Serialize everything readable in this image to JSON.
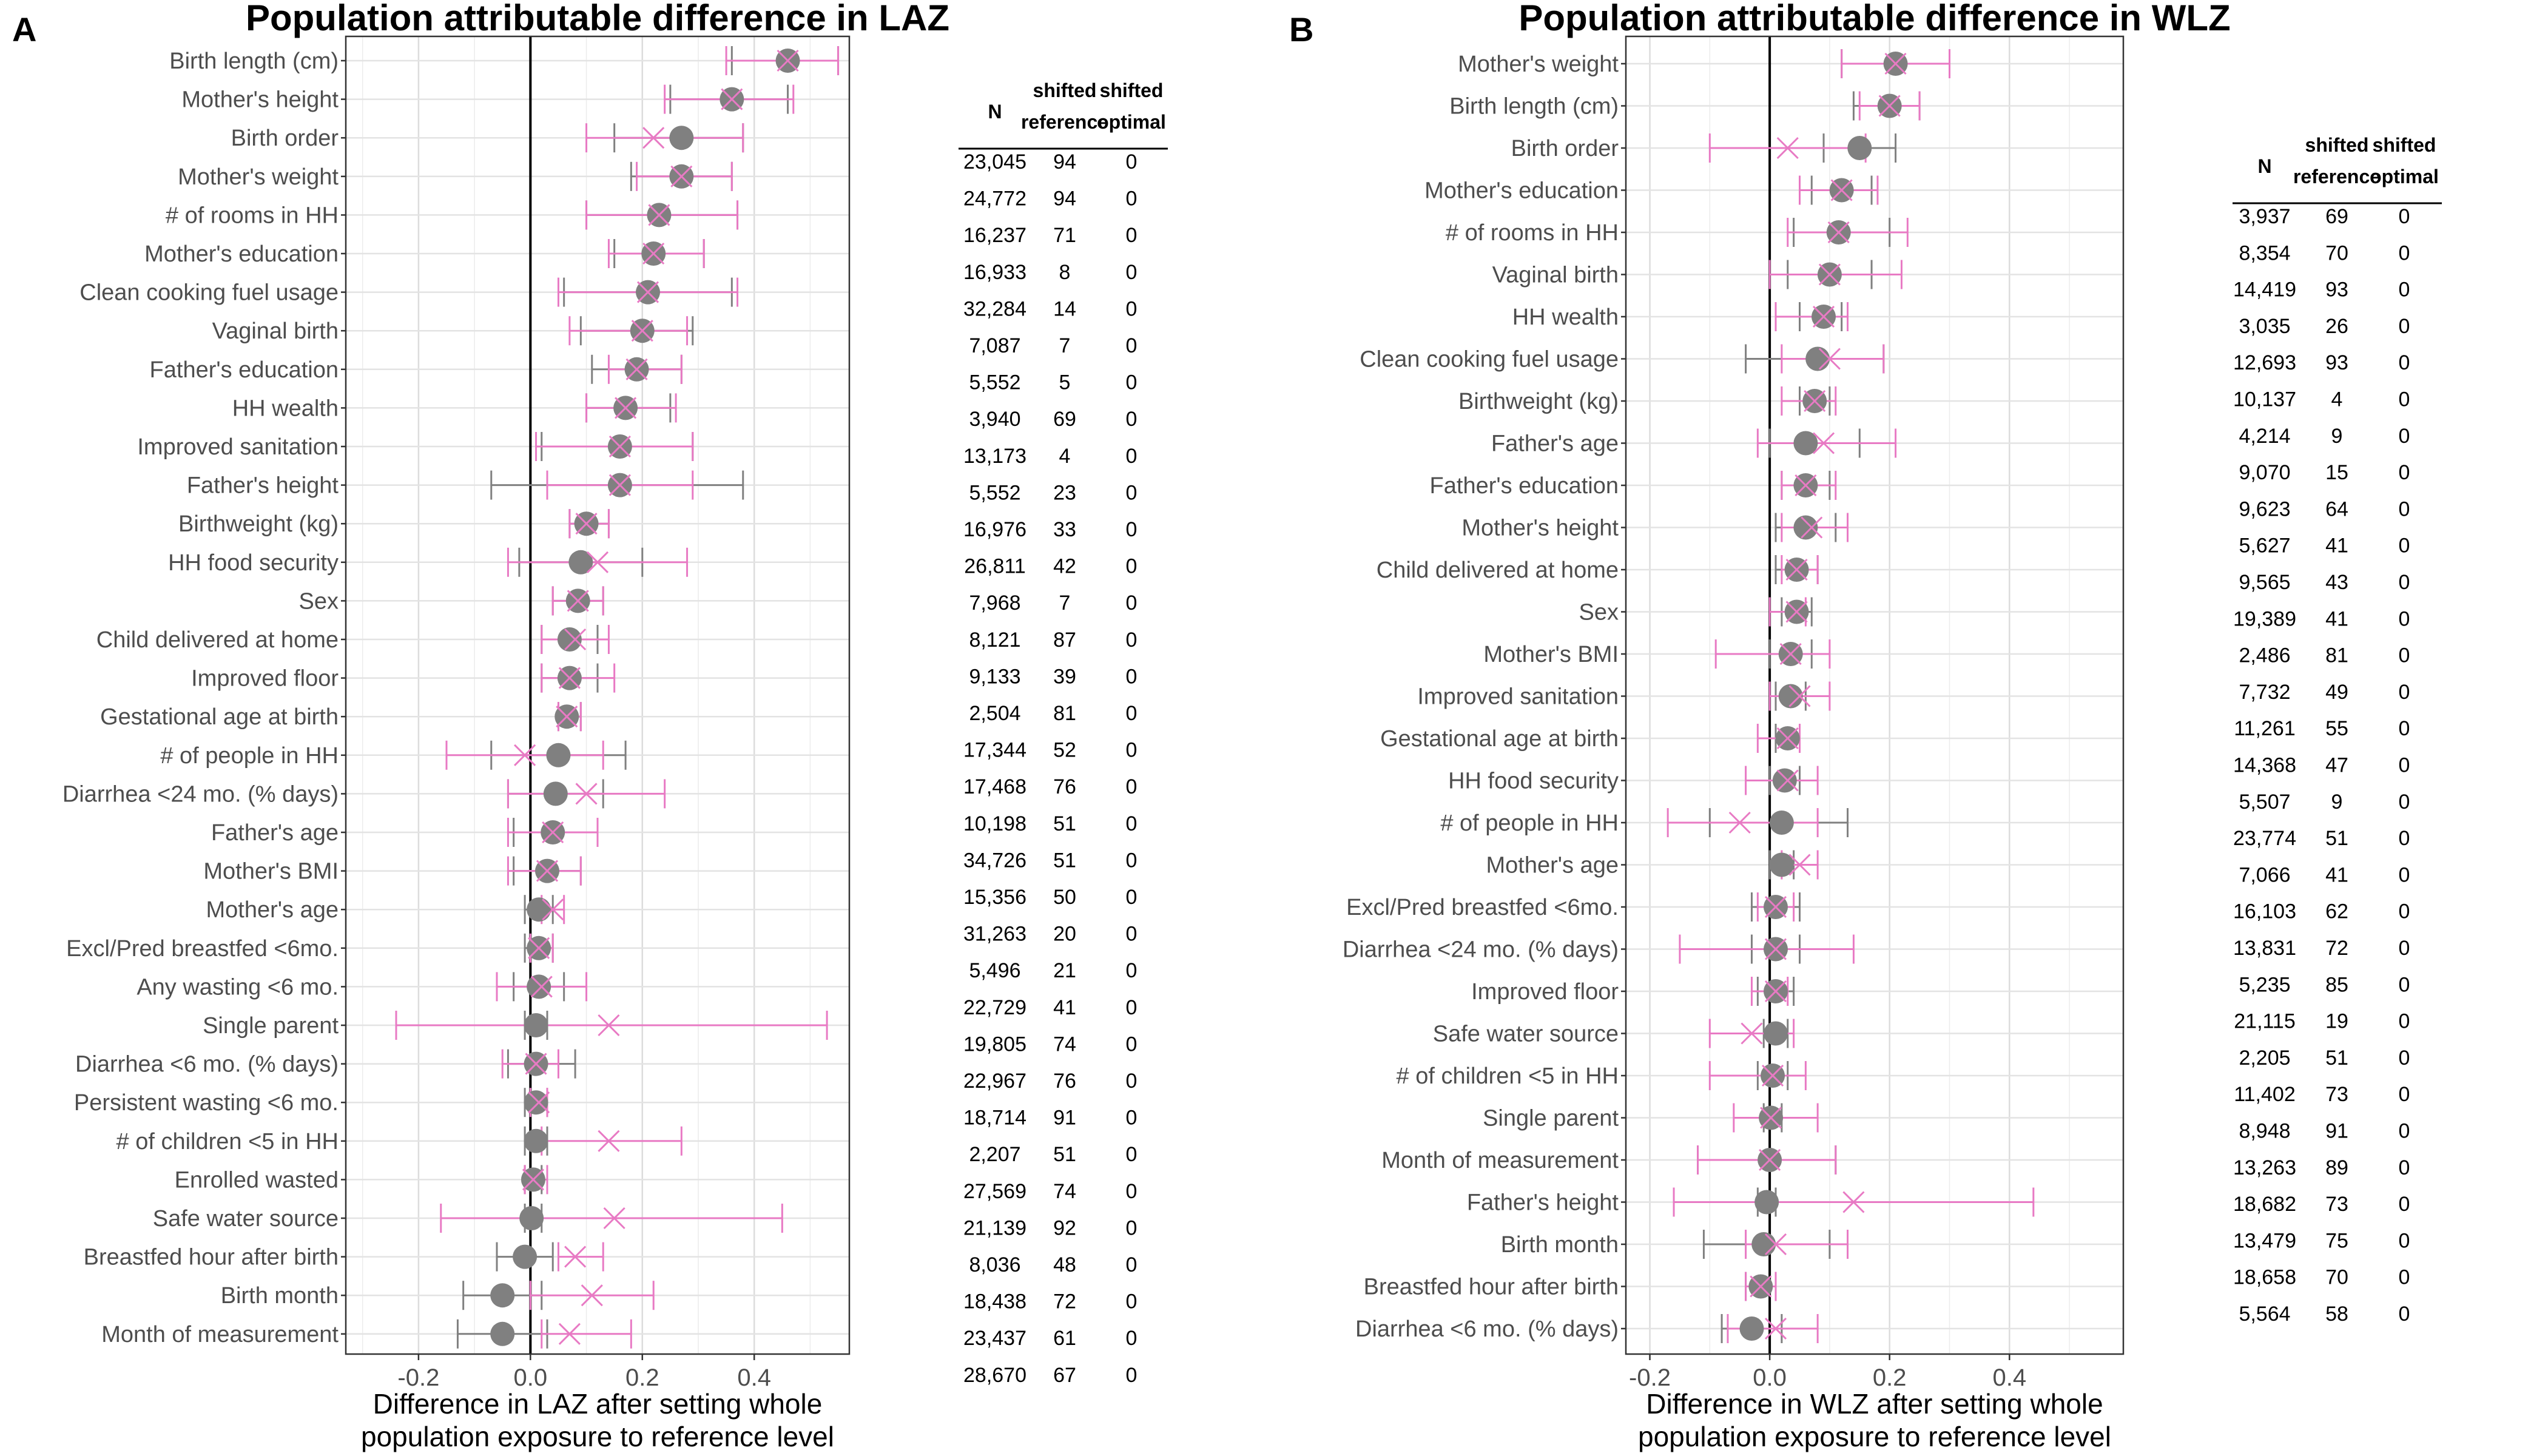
{
  "chart_data": [
    {
      "type": "scatter",
      "panel": "A",
      "title": "Population attributable difference in LAZ",
      "xlabel": "Difference in LAZ after setting whole\npopulation exposure to reference level",
      "xlim": [
        -0.33,
        0.57
      ],
      "xticks": [
        -0.2,
        0.0,
        0.2,
        0.4
      ],
      "grid": true,
      "categories": [
        "Birth length (cm)",
        "Mother's height",
        "Birth order",
        "Mother's weight",
        "# of rooms in HH",
        "Mother's education",
        "Clean cooking fuel usage",
        "Vaginal birth",
        "Father's education",
        "HH wealth",
        "Improved sanitation",
        "Father's height",
        "Birthweight (kg)",
        "HH food security",
        "Sex",
        "Child delivered at home",
        "Improved floor",
        "Gestational age at birth",
        "# of people in HH",
        "Diarrhea <24 mo.  (% days)",
        "Father's age",
        "Mother's BMI",
        "Mother's age",
        "Excl/Pred breastfed <6mo.",
        "Any wasting  <6 mo.",
        "Single parent",
        "Diarrhea <6 mo. (% days)",
        "Persistent wasting  <6 mo.",
        "# of children <5 in HH",
        "Enrolled wasted",
        "Safe water source",
        "Breastfed hour after birth",
        "Birth month",
        "Month of measurement"
      ],
      "series": [
        {
          "marker": "filled-circle",
          "color": "#808080",
          "values": [
            0.46,
            0.36,
            0.27,
            0.27,
            0.23,
            0.22,
            0.21,
            0.2,
            0.19,
            0.17,
            0.16,
            0.16,
            0.1,
            0.09,
            0.085,
            0.07,
            0.07,
            0.065,
            0.05,
            0.045,
            0.04,
            0.03,
            0.015,
            0.015,
            0.015,
            0.01,
            0.01,
            0.01,
            0.01,
            0.005,
            0.002,
            -0.01,
            -0.05,
            -0.05
          ],
          "lower": [
            0.36,
            0.25,
            0.15,
            0.18,
            0.1,
            0.15,
            0.06,
            0.09,
            0.11,
            0.1,
            0.02,
            -0.07,
            0.07,
            -0.02,
            0.04,
            0.02,
            0.02,
            0.05,
            -0.07,
            -0.04,
            -0.03,
            -0.03,
            -0.01,
            -0.01,
            -0.03,
            -0.01,
            -0.04,
            -0.01,
            -0.01,
            -0.01,
            -0.01,
            -0.06,
            -0.12,
            -0.13
          ],
          "upper": [
            0.55,
            0.46,
            0.38,
            0.36,
            0.37,
            0.31,
            0.36,
            0.29,
            0.27,
            0.25,
            0.29,
            0.38,
            0.14,
            0.2,
            0.13,
            0.12,
            0.12,
            0.09,
            0.17,
            0.13,
            0.12,
            0.09,
            0.04,
            0.04,
            0.06,
            0.03,
            0.08,
            0.03,
            0.03,
            0.02,
            0.02,
            0.04,
            0.02,
            0.03
          ]
        },
        {
          "marker": "x",
          "color": "#e87ac4",
          "values": [
            0.46,
            0.36,
            0.22,
            0.27,
            0.23,
            0.22,
            0.21,
            0.2,
            0.19,
            0.17,
            0.16,
            0.16,
            0.1,
            0.12,
            0.085,
            0.08,
            0.07,
            0.065,
            -0.01,
            0.1,
            0.04,
            0.03,
            0.04,
            0.015,
            0.02,
            0.14,
            0.01,
            0.015,
            0.14,
            0.005,
            0.15,
            0.08,
            0.11,
            0.07
          ],
          "lower": [
            0.35,
            0.24,
            0.1,
            0.19,
            0.1,
            0.14,
            0.05,
            0.07,
            0.14,
            0.1,
            0.01,
            0.03,
            0.07,
            -0.04,
            0.04,
            0.02,
            0.02,
            0.05,
            -0.15,
            -0.04,
            -0.04,
            -0.04,
            0.02,
            0.0,
            -0.06,
            -0.24,
            -0.05,
            0.0,
            0.02,
            -0.01,
            -0.16,
            0.05,
            0.0,
            0.02
          ],
          "upper": [
            0.55,
            0.47,
            0.38,
            0.36,
            0.37,
            0.31,
            0.37,
            0.28,
            0.27,
            0.26,
            0.29,
            0.29,
            0.14,
            0.28,
            0.13,
            0.14,
            0.15,
            0.09,
            0.13,
            0.24,
            0.12,
            0.09,
            0.06,
            0.04,
            0.1,
            0.53,
            0.05,
            0.03,
            0.27,
            0.03,
            0.45,
            0.13,
            0.22,
            0.18
          ]
        }
      ],
      "table": {
        "headers": [
          "N",
          "shifted\nreference",
          "shifted\noptimal"
        ],
        "rows": [
          [
            "23,045",
            "94",
            "0"
          ],
          [
            "24,772",
            "94",
            "0"
          ],
          [
            "16,237",
            "71",
            "0"
          ],
          [
            "16,933",
            "8",
            "0"
          ],
          [
            "32,284",
            "14",
            "0"
          ],
          [
            "7,087",
            "7",
            "0"
          ],
          [
            "5,552",
            "5",
            "0"
          ],
          [
            "3,940",
            "69",
            "0"
          ],
          [
            "13,173",
            "4",
            "0"
          ],
          [
            "5,552",
            "23",
            "0"
          ],
          [
            "16,976",
            "33",
            "0"
          ],
          [
            "26,811",
            "42",
            "0"
          ],
          [
            "7,968",
            "7",
            "0"
          ],
          [
            "8,121",
            "87",
            "0"
          ],
          [
            "9,133",
            "39",
            "0"
          ],
          [
            "2,504",
            "81",
            "0"
          ],
          [
            "17,344",
            "52",
            "0"
          ],
          [
            "17,468",
            "76",
            "0"
          ],
          [
            "10,198",
            "51",
            "0"
          ],
          [
            "34,726",
            "51",
            "0"
          ],
          [
            "15,356",
            "50",
            "0"
          ],
          [
            "31,263",
            "20",
            "0"
          ],
          [
            "5,496",
            "21",
            "0"
          ],
          [
            "22,729",
            "41",
            "0"
          ],
          [
            "19,805",
            "74",
            "0"
          ],
          [
            "22,967",
            "76",
            "0"
          ],
          [
            "18,714",
            "91",
            "0"
          ],
          [
            "2,207",
            "51",
            "0"
          ],
          [
            "27,569",
            "74",
            "0"
          ],
          [
            "21,139",
            "92",
            "0"
          ],
          [
            "8,036",
            "48",
            "0"
          ],
          [
            "18,438",
            "72",
            "0"
          ],
          [
            "23,437",
            "61",
            "0"
          ],
          [
            "28,670",
            "67",
            "0"
          ]
        ]
      }
    },
    {
      "type": "scatter",
      "panel": "B",
      "title": "Population attributable difference in WLZ",
      "xlabel": "Difference in WLZ after setting whole\npopulation exposure to reference level",
      "xlim": [
        -0.24,
        0.59
      ],
      "xticks": [
        -0.2,
        0.0,
        0.2,
        0.4
      ],
      "grid": true,
      "categories": [
        "Mother's weight",
        "Birth length (cm)",
        "Birth order",
        "Mother's education",
        "# of rooms in HH",
        "Vaginal birth",
        "HH wealth",
        "Clean cooking fuel usage",
        "Birthweight (kg)",
        "Father's age",
        "Father's education",
        "Mother's height",
        "Child delivered at home",
        "Sex",
        "Mother's BMI",
        "Improved sanitation",
        "Gestational age at birth",
        "HH food security",
        "# of people in HH",
        "Mother's age",
        "Excl/Pred breastfed <6mo.",
        "Diarrhea <24 mo.  (% days)",
        "Improved floor",
        "Safe water source",
        "# of children <5 in HH",
        "Single parent",
        "Month of measurement",
        "Father's height",
        "Birth month",
        "Breastfed hour after birth",
        "Diarrhea <6 mo. (% days)"
      ],
      "series": [
        {
          "marker": "filled-circle",
          "color": "#808080",
          "values": [
            0.21,
            0.2,
            0.15,
            0.12,
            0.115,
            0.1,
            0.09,
            0.08,
            0.075,
            0.06,
            0.06,
            0.06,
            0.045,
            0.045,
            0.035,
            0.035,
            0.03,
            0.025,
            0.02,
            0.02,
            0.01,
            0.01,
            0.01,
            0.01,
            0.005,
            0.002,
            0.0,
            -0.005,
            -0.01,
            -0.015,
            -0.03
          ],
          "lower": [
            0.12,
            0.14,
            0.09,
            0.07,
            0.04,
            0.03,
            0.05,
            -0.04,
            0.05,
            0.0,
            0.02,
            0.01,
            0.01,
            0.02,
            0.0,
            0.01,
            0.01,
            0.0,
            -0.1,
            0.0,
            -0.03,
            -0.03,
            -0.02,
            -0.01,
            -0.02,
            -0.01,
            -0.12,
            -0.02,
            -0.11,
            -0.04,
            -0.08
          ],
          "upper": [
            0.3,
            0.25,
            0.21,
            0.17,
            0.2,
            0.17,
            0.12,
            0.19,
            0.1,
            0.15,
            0.1,
            0.11,
            0.08,
            0.07,
            0.07,
            0.06,
            0.05,
            0.05,
            0.13,
            0.04,
            0.05,
            0.05,
            0.04,
            0.03,
            0.03,
            0.02,
            0.11,
            0.01,
            0.1,
            0.01,
            0.02
          ]
        },
        {
          "marker": "x",
          "color": "#e87ac4",
          "values": [
            0.21,
            0.2,
            0.03,
            0.12,
            0.115,
            0.1,
            0.09,
            0.1,
            0.075,
            0.09,
            0.06,
            0.07,
            0.045,
            0.045,
            0.035,
            0.05,
            0.03,
            0.03,
            -0.05,
            0.05,
            0.01,
            0.01,
            0.01,
            -0.03,
            0.005,
            0.002,
            0.0,
            0.14,
            0.01,
            -0.015,
            0.01
          ],
          "lower": [
            0.12,
            0.15,
            -0.1,
            0.05,
            0.03,
            0.0,
            0.01,
            0.02,
            0.02,
            -0.02,
            0.02,
            0.02,
            0.02,
            0.0,
            -0.09,
            0.0,
            -0.02,
            -0.04,
            -0.17,
            0.02,
            -0.02,
            -0.15,
            -0.03,
            -0.1,
            -0.1,
            -0.06,
            -0.12,
            -0.16,
            -0.04,
            -0.04,
            -0.07
          ],
          "upper": [
            0.3,
            0.25,
            0.16,
            0.18,
            0.23,
            0.22,
            0.13,
            0.19,
            0.11,
            0.21,
            0.11,
            0.13,
            0.08,
            0.06,
            0.1,
            0.1,
            0.05,
            0.08,
            0.08,
            0.08,
            0.04,
            0.14,
            0.03,
            0.04,
            0.06,
            0.08,
            0.11,
            0.44,
            0.13,
            0.01,
            0.08
          ]
        }
      ],
      "table": {
        "headers": [
          "N",
          "shifted\nreference",
          "shifted\noptimal"
        ],
        "rows": [
          [
            "3,937",
            "69",
            "0"
          ],
          [
            "8,354",
            "70",
            "0"
          ],
          [
            "14,419",
            "93",
            "0"
          ],
          [
            "3,035",
            "26",
            "0"
          ],
          [
            "12,693",
            "93",
            "0"
          ],
          [
            "10,137",
            "4",
            "0"
          ],
          [
            "4,214",
            "9",
            "0"
          ],
          [
            "9,070",
            "15",
            "0"
          ],
          [
            "9,623",
            "64",
            "0"
          ],
          [
            "5,627",
            "41",
            "0"
          ],
          [
            "9,565",
            "43",
            "0"
          ],
          [
            "19,389",
            "41",
            "0"
          ],
          [
            "2,486",
            "81",
            "0"
          ],
          [
            "7,732",
            "49",
            "0"
          ],
          [
            "11,261",
            "55",
            "0"
          ],
          [
            "14,368",
            "47",
            "0"
          ],
          [
            "5,507",
            "9",
            "0"
          ],
          [
            "23,774",
            "51",
            "0"
          ],
          [
            "7,066",
            "41",
            "0"
          ],
          [
            "16,103",
            "62",
            "0"
          ],
          [
            "13,831",
            "72",
            "0"
          ],
          [
            "5,235",
            "85",
            "0"
          ],
          [
            "21,115",
            "19",
            "0"
          ],
          [
            "2,205",
            "51",
            "0"
          ],
          [
            "11,402",
            "73",
            "0"
          ],
          [
            "8,948",
            "91",
            "0"
          ],
          [
            "13,263",
            "89",
            "0"
          ],
          [
            "18,682",
            "73",
            "0"
          ],
          [
            "13,479",
            "75",
            "0"
          ],
          [
            "18,658",
            "70",
            "0"
          ],
          [
            "5,564",
            "58",
            "0"
          ]
        ]
      }
    }
  ]
}
